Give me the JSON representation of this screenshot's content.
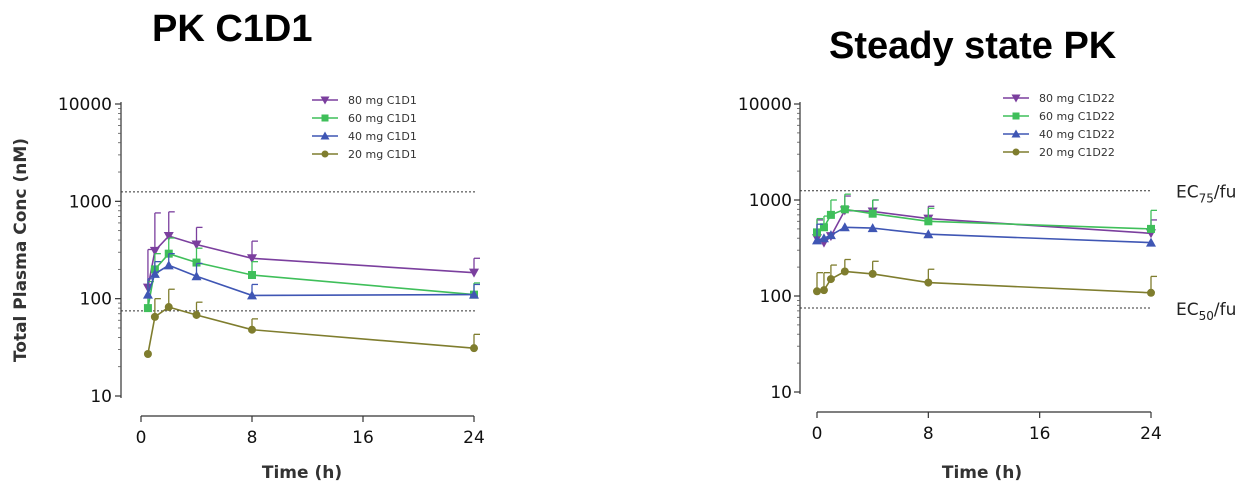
{
  "chart_data": [
    {
      "type": "line",
      "title": "PK C1D1",
      "xlabel": "Time (h)",
      "ylabel": "Total Plasma Conc (nM)",
      "xlim": [
        0,
        24
      ],
      "ylim": [
        10,
        10000
      ],
      "yscale": "log",
      "xticks": [
        0,
        8,
        16,
        24
      ],
      "xtick_labels": [
        "0",
        "8",
        "16",
        "24"
      ],
      "yticks": [
        10,
        100,
        1000,
        10000
      ],
      "ytick_labels": [
        "10",
        "100",
        "1000",
        "10000"
      ],
      "legend_position": "top-right",
      "grid": false,
      "reference_lines": [
        {
          "y": 1250,
          "label": ""
        },
        {
          "y": 75,
          "label": ""
        }
      ],
      "series": [
        {
          "name": "80 mg C1D1",
          "color": "#7b3f9e",
          "marker": "triangle-down",
          "x": [
            0.5,
            1,
            2,
            4,
            8,
            24
          ],
          "y": [
            130,
            310,
            440,
            360,
            260,
            185
          ],
          "err": [
            320,
            760,
            780,
            540,
            390,
            260
          ]
        },
        {
          "name": "60 mg C1D1",
          "color": "#3fbf5a",
          "marker": "square",
          "x": [
            0.5,
            1,
            2,
            4,
            8,
            24
          ],
          "y": [
            80,
            200,
            290,
            235,
            175,
            110
          ],
          "err": [
            150,
            290,
            420,
            330,
            240,
            145
          ]
        },
        {
          "name": "40 mg C1D1",
          "color": "#3f56b4",
          "marker": "triangle-up",
          "x": [
            0.5,
            1,
            2,
            4,
            8,
            24
          ],
          "y": [
            110,
            180,
            220,
            170,
            108,
            110
          ],
          "err": [
            160,
            240,
            290,
            230,
            140,
            140
          ]
        },
        {
          "name": "20 mg C1D1",
          "color": "#7f7d2e",
          "marker": "circle",
          "x": [
            0.5,
            1,
            2,
            4,
            8,
            24
          ],
          "y": [
            27,
            65,
            82,
            68,
            48,
            31
          ],
          "err": [
            0,
            100,
            125,
            92,
            62,
            43
          ]
        }
      ]
    },
    {
      "type": "line",
      "title": "Steady state PK",
      "xlabel": "Time (h)",
      "ylabel": "",
      "xlim": [
        0,
        24
      ],
      "ylim": [
        10,
        10000
      ],
      "yscale": "log",
      "xticks": [
        0,
        8,
        16,
        24
      ],
      "xtick_labels": [
        "0",
        "8",
        "16",
        "24"
      ],
      "yticks": [
        10,
        100,
        1000,
        10000
      ],
      "ytick_labels": [
        "10",
        "100",
        "1000",
        "10000"
      ],
      "legend_position": "top-right",
      "grid": false,
      "reference_lines": [
        {
          "y": 1250,
          "label": "EC",
          "sub": "75",
          "suffix": "/fu"
        },
        {
          "y": 75,
          "label": "EC",
          "sub": "50",
          "suffix": "/fu"
        }
      ],
      "series": [
        {
          "name": "80 mg C1D22",
          "color": "#7b3f9e",
          "marker": "triangle-down",
          "x": [
            0,
            0.5,
            1,
            2,
            4,
            8,
            24
          ],
          "y": [
            400,
            360,
            420,
            780,
            760,
            640,
            450
          ],
          "err": [
            620,
            0,
            0,
            1100,
            1000,
            860,
            620
          ]
        },
        {
          "name": "60 mg C1D22",
          "color": "#3fbf5a",
          "marker": "square",
          "x": [
            0,
            0.5,
            1,
            2,
            4,
            8,
            24
          ],
          "y": [
            460,
            520,
            700,
            800,
            720,
            600,
            500
          ],
          "err": [
            640,
            680,
            1000,
            1150,
            1000,
            820,
            780
          ]
        },
        {
          "name": "40 mg C1D22",
          "color": "#3f56b4",
          "marker": "triangle-up",
          "x": [
            0,
            0.5,
            1,
            2,
            4,
            8,
            24
          ],
          "y": [
            380,
            400,
            430,
            520,
            510,
            440,
            360
          ],
          "err": [
            560,
            0,
            0,
            0,
            0,
            0,
            0
          ]
        },
        {
          "name": "20 mg C1D22",
          "color": "#7f7d2e",
          "marker": "circle",
          "x": [
            0,
            0.5,
            1,
            2,
            4,
            8,
            24
          ],
          "y": [
            112,
            115,
            150,
            180,
            170,
            138,
            108
          ],
          "err": [
            175,
            175,
            210,
            240,
            230,
            190,
            160
          ]
        }
      ]
    }
  ]
}
